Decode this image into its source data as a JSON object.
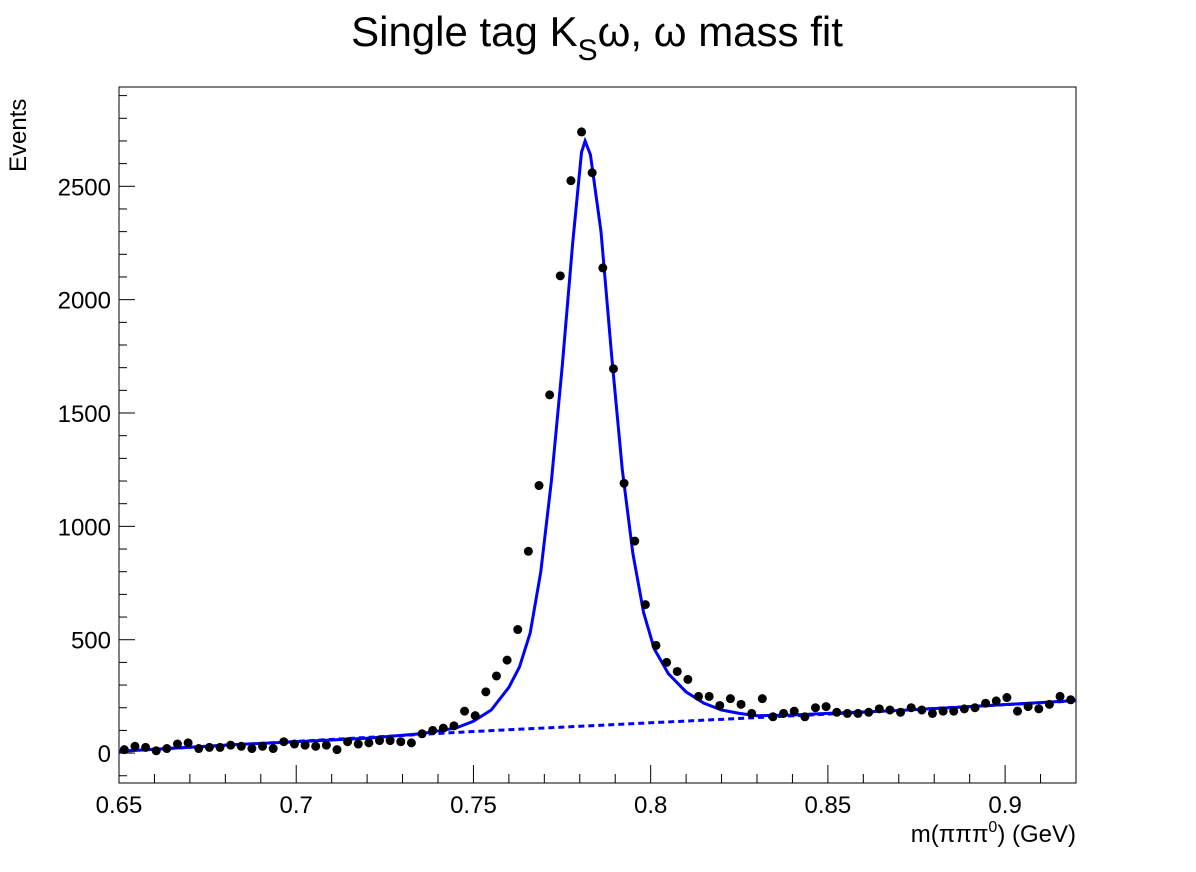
{
  "chart_data": {
    "type": "histfit",
    "title": {
      "main": "Single tag K",
      "sub": "S",
      "rest": "ω, ω mass fit"
    },
    "xlabel": {
      "main": "m(πππ",
      "sup": "0",
      "rest": ") (GeV)"
    },
    "ylabel": "Events",
    "xlim": [
      0.65,
      0.92
    ],
    "ylim": [
      -132,
      2938
    ],
    "xticks": [
      0.65,
      0.7,
      0.75,
      0.8,
      0.85,
      0.9
    ],
    "xminorticks": [
      0.66,
      0.67,
      0.68,
      0.69,
      0.71,
      0.72,
      0.73,
      0.74,
      0.76,
      0.77,
      0.78,
      0.79,
      0.81,
      0.82,
      0.83,
      0.84,
      0.86,
      0.87,
      0.88,
      0.89,
      0.91
    ],
    "yticks": [
      0,
      500,
      1000,
      1500,
      2000,
      2500
    ],
    "yminorticks": [
      -100,
      100,
      200,
      300,
      400,
      600,
      700,
      800,
      900,
      1100,
      1200,
      1300,
      1400,
      1600,
      1700,
      1800,
      1900,
      2100,
      2200,
      2300,
      2400,
      2600,
      2700,
      2800,
      2900
    ],
    "points": {
      "color": "#000000",
      "x": [
        0.6515,
        0.6545,
        0.6575,
        0.6605,
        0.6635,
        0.6665,
        0.6695,
        0.6725,
        0.6755,
        0.6785,
        0.6815,
        0.6845,
        0.6875,
        0.6905,
        0.6935,
        0.6965,
        0.6995,
        0.7025,
        0.7055,
        0.7085,
        0.7115,
        0.7145,
        0.7175,
        0.7205,
        0.7235,
        0.7265,
        0.7295,
        0.7325,
        0.7355,
        0.7385,
        0.7415,
        0.7445,
        0.7475,
        0.7505,
        0.7535,
        0.7565,
        0.7595,
        0.7625,
        0.7655,
        0.7685,
        0.7715,
        0.7745,
        0.7775,
        0.7805,
        0.7835,
        0.7865,
        0.7895,
        0.7925,
        0.7955,
        0.7985,
        0.8015,
        0.8045,
        0.8075,
        0.8105,
        0.8135,
        0.8165,
        0.8195,
        0.8225,
        0.8255,
        0.8285,
        0.8315,
        0.8345,
        0.8375,
        0.8405,
        0.8435,
        0.8465,
        0.8495,
        0.8525,
        0.8555,
        0.8585,
        0.8615,
        0.8645,
        0.8675,
        0.8705,
        0.8735,
        0.8765,
        0.8795,
        0.8825,
        0.8855,
        0.8885,
        0.8915,
        0.8945,
        0.8975,
        0.9005,
        0.9035,
        0.9065,
        0.9095,
        0.9125,
        0.9155,
        0.9185
      ],
      "values": [
        15,
        30,
        25,
        10,
        20,
        40,
        45,
        20,
        25,
        25,
        35,
        30,
        20,
        30,
        20,
        50,
        40,
        35,
        30,
        35,
        15,
        50,
        40,
        45,
        55,
        55,
        50,
        45,
        85,
        100,
        110,
        120,
        185,
        165,
        270,
        340,
        410,
        545,
        890,
        1180,
        1580,
        2105,
        2525,
        2740,
        2560,
        2140,
        1695,
        1190,
        935,
        655,
        475,
        400,
        360,
        325,
        250,
        250,
        210,
        240,
        215,
        175,
        240,
        160,
        175,
        185,
        160,
        200,
        205,
        180,
        175,
        175,
        180,
        195,
        190,
        180,
        200,
        190,
        175,
        185,
        185,
        195,
        200,
        220,
        230,
        245,
        185,
        205,
        195,
        215,
        250,
        235
      ]
    },
    "fit": {
      "color": "#0000ff",
      "x": [
        0.65,
        0.68,
        0.7,
        0.72,
        0.735,
        0.745,
        0.75,
        0.755,
        0.76,
        0.763,
        0.766,
        0.769,
        0.772,
        0.775,
        0.778,
        0.7805,
        0.7815,
        0.783,
        0.786,
        0.789,
        0.792,
        0.795,
        0.798,
        0.801,
        0.805,
        0.81,
        0.815,
        0.82,
        0.825,
        0.83,
        0.84,
        0.85,
        0.87,
        0.89,
        0.92
      ],
      "values": [
        8,
        35,
        50,
        65,
        85,
        110,
        140,
        190,
        290,
        380,
        530,
        800,
        1200,
        1700,
        2250,
        2650,
        2700,
        2640,
        2300,
        1750,
        1250,
        880,
        620,
        460,
        350,
        270,
        220,
        190,
        175,
        165,
        168,
        175,
        188,
        205,
        232
      ]
    },
    "background": {
      "color": "#0000ff",
      "dashed": true,
      "x": [
        0.65,
        0.75,
        0.85,
        0.92
      ],
      "values": [
        8,
        95,
        172,
        230
      ]
    }
  }
}
